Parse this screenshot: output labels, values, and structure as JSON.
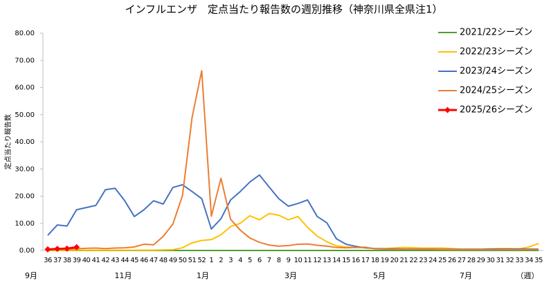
{
  "chart_data": {
    "type": "line",
    "title": "インフルエンザ　定点当たり報告数の週別推移（神奈川県全県注1）",
    "y_label": "定点当たり報告数",
    "categories": [
      "36",
      "37",
      "38",
      "39",
      "40",
      "41",
      "42",
      "43",
      "44",
      "45",
      "46",
      "47",
      "48",
      "49",
      "50",
      "51",
      "52",
      "1",
      "2",
      "3",
      "4",
      "5",
      "6",
      "7",
      "8",
      "9",
      "10",
      "11",
      "12",
      "13",
      "14",
      "15",
      "16",
      "17",
      "18",
      "19",
      "20",
      "21",
      "22",
      "23",
      "24",
      "25",
      "26",
      "27",
      "28",
      "29",
      "30",
      "31",
      "32",
      "33",
      "34",
      "35"
    ],
    "month_labels": [
      "9月",
      "11月",
      "1月",
      "3月",
      "5月",
      "7月",
      "（週）"
    ],
    "ylim": [
      0,
      80
    ],
    "yticks": [
      {
        "value": 0,
        "label": "0.00"
      },
      {
        "value": 10,
        "label": "10.00"
      },
      {
        "value": 20,
        "label": "20.00"
      },
      {
        "value": 30,
        "label": "30.00"
      },
      {
        "value": 40,
        "label": "40.00"
      },
      {
        "value": 50,
        "label": "50.00"
      },
      {
        "value": 60,
        "label": "60.00"
      },
      {
        "value": 70,
        "label": "70.00"
      },
      {
        "value": 80,
        "label": "80.00"
      }
    ],
    "legend": "upper right",
    "series": [
      {
        "name": "2021/22シーズン",
        "color": "#4aa02c",
        "values": [
          0,
          0,
          0,
          0,
          0,
          0,
          0,
          0,
          0,
          0,
          0,
          0,
          0,
          0,
          0,
          0,
          0,
          0,
          0,
          0,
          0,
          0,
          0,
          0,
          0,
          0,
          0,
          0,
          0,
          0,
          0,
          0,
          0,
          0,
          0,
          0,
          0,
          0,
          0,
          0,
          0,
          0,
          0,
          0,
          0,
          0,
          0,
          0,
          0,
          0,
          0,
          0
        ]
      },
      {
        "name": "2022/23シーズン",
        "color": "#ffc000",
        "values": [
          0.1,
          0.1,
          0.1,
          0.1,
          0.1,
          0.1,
          0.1,
          0.1,
          0.1,
          0.1,
          0.1,
          0.1,
          0.2,
          0.3,
          1.0,
          2.8,
          3.7,
          4.0,
          5.8,
          8.8,
          10.0,
          12.8,
          11.3,
          13.6,
          13.0,
          11.3,
          12.5,
          8.5,
          5.3,
          3.2,
          1.7,
          1.3,
          1.1,
          1.0,
          0.7,
          0.7,
          0.9,
          1.1,
          1.0,
          0.9,
          0.9,
          0.9,
          0.7,
          0.5,
          0.5,
          0.5,
          0.6,
          0.7,
          0.7,
          0.6,
          1.3,
          2.6
        ]
      },
      {
        "name": "2023/24シーズン",
        "color": "#4472c4",
        "values": [
          5.6,
          9.4,
          9.0,
          15.0,
          15.8,
          16.6,
          22.4,
          22.9,
          18.3,
          12.5,
          15.0,
          18.3,
          17.1,
          23.2,
          24.2,
          21.7,
          19.1,
          7.9,
          11.7,
          18.6,
          21.7,
          25.2,
          27.8,
          23.4,
          19.1,
          16.3,
          17.3,
          18.6,
          12.5,
          10.2,
          4.3,
          2.3,
          1.5,
          1.0,
          0.7,
          0.6,
          0.6,
          0.5,
          0.5,
          0.5,
          0.5,
          0.4,
          0.4,
          0.4,
          0.4,
          0.4,
          0.5,
          0.5,
          0.5,
          0.5,
          0.5,
          0.5
        ]
      },
      {
        "name": "2024/25シーズン",
        "color": "#ed7d31",
        "values": [
          0.4,
          0.5,
          0.5,
          0.6,
          0.8,
          0.9,
          0.7,
          0.9,
          1.0,
          1.3,
          2.3,
          2.1,
          5.2,
          9.7,
          20.2,
          49.0,
          66.2,
          12.6,
          26.6,
          11.5,
          7.5,
          4.6,
          3.0,
          2.0,
          1.6,
          1.8,
          2.3,
          2.4,
          1.9,
          1.6,
          1.1,
          1.0,
          1.1,
          1.2,
          0.6,
          0.5,
          0.4,
          0.4,
          0.4,
          0.4,
          0.4,
          0.3,
          0.3,
          0.3,
          0.3,
          0.3,
          0.3,
          0.3,
          0.3,
          0.3,
          0.3,
          0.4
        ]
      },
      {
        "name": "2025/26シーズン",
        "color": "#ff0000",
        "marker": "diamond",
        "values": [
          0.4,
          0.6,
          0.7,
          1.2,
          null,
          null,
          null,
          null,
          null,
          null,
          null,
          null,
          null,
          null,
          null,
          null,
          null,
          null,
          null,
          null,
          null,
          null,
          null,
          null,
          null,
          null,
          null,
          null,
          null,
          null,
          null,
          null,
          null,
          null,
          null,
          null,
          null,
          null,
          null,
          null,
          null,
          null,
          null,
          null,
          null,
          null,
          null,
          null,
          null,
          null,
          null,
          null
        ]
      }
    ]
  }
}
